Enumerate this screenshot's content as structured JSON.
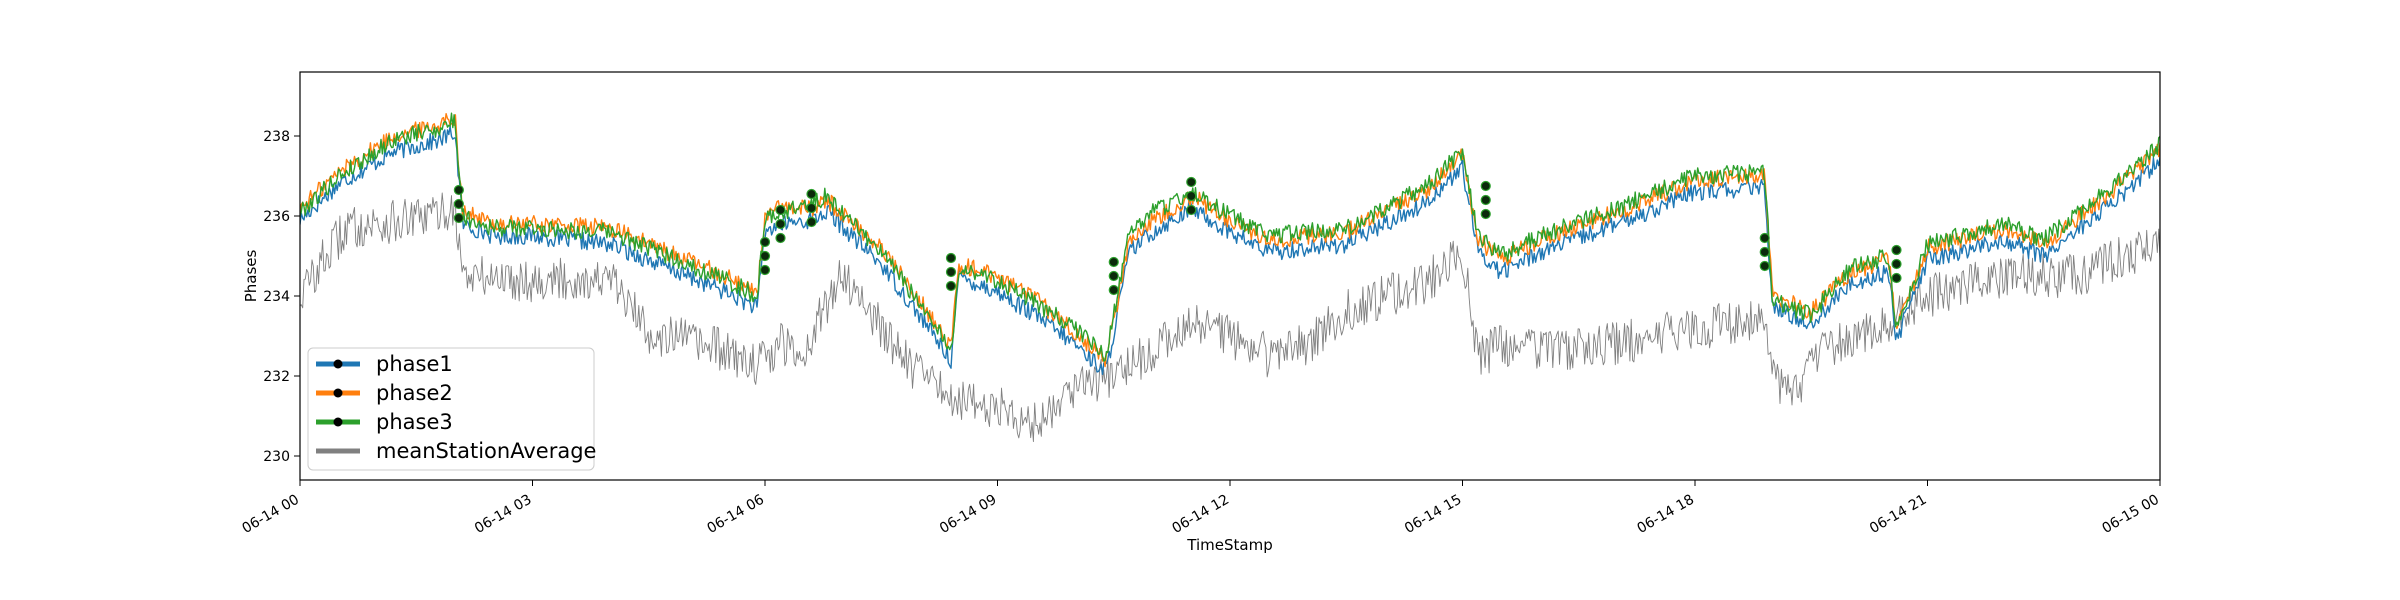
{
  "chart_data": {
    "type": "line",
    "title": "",
    "xlabel": "TimeStamp",
    "ylabel": "Phases",
    "xlim": [
      "06-14 00",
      "06-15 00"
    ],
    "ylim": [
      229.4,
      239.6
    ],
    "x_ticks": [
      "06-14 00",
      "06-14 03",
      "06-14 06",
      "06-14 09",
      "06-14 12",
      "06-14 15",
      "06-14 18",
      "06-14 21",
      "06-15 00"
    ],
    "y_ticks": [
      "230",
      "232",
      "234",
      "236",
      "238"
    ],
    "grid": false,
    "legend_position": "lower-left",
    "series": [
      {
        "name": "phase1",
        "color": "#1f77b4",
        "x_hours": [
          0,
          0.5,
          1.2,
          1.8,
          2.0,
          2.1,
          2.5,
          3,
          4,
          5,
          5.5,
          5.9,
          6.0,
          6.2,
          6.6,
          6.8,
          7.5,
          8.0,
          8.4,
          8.5,
          9.0,
          9.5,
          10.0,
          10.4,
          10.7,
          11.0,
          11.5,
          12.0,
          12.5,
          13.5,
          14.5,
          15.0,
          15.2,
          15.5,
          16.0,
          17.0,
          18.0,
          18.9,
          19.0,
          19.5,
          20.0,
          20.5,
          20.6,
          21,
          22,
          22.5,
          23.5,
          24
        ],
        "values": [
          235.9,
          236.8,
          237.6,
          237.9,
          238.1,
          235.8,
          235.5,
          235.5,
          235.3,
          234.5,
          234.1,
          233.7,
          235.6,
          235.8,
          235.9,
          236.1,
          234.8,
          233.5,
          232.4,
          234.5,
          234.1,
          233.5,
          232.8,
          232.1,
          235.1,
          235.6,
          236.2,
          235.6,
          235.1,
          235.3,
          236.3,
          237.2,
          235.1,
          234.6,
          235.1,
          235.8,
          236.6,
          236.7,
          233.7,
          233.3,
          234.3,
          234.6,
          232.9,
          234.9,
          235.4,
          235.0,
          236.5,
          237.4
        ]
      },
      {
        "name": "phase2",
        "color": "#ff7f0e",
        "x_hours": [
          0,
          0.5,
          1.2,
          1.8,
          2.0,
          2.1,
          2.5,
          3,
          4,
          5,
          5.5,
          5.9,
          6.0,
          6.2,
          6.6,
          6.8,
          7.5,
          8.0,
          8.4,
          8.5,
          9.0,
          9.5,
          10.0,
          10.4,
          10.7,
          11.0,
          11.5,
          12.0,
          12.5,
          13.5,
          14.5,
          15.0,
          15.2,
          15.5,
          16.0,
          17.0,
          18.0,
          18.9,
          19.0,
          19.5,
          20.0,
          20.5,
          20.6,
          21,
          22,
          22.5,
          23.5,
          24
        ],
        "values": [
          236.2,
          237.1,
          238.0,
          238.3,
          238.5,
          236.1,
          235.8,
          235.8,
          235.7,
          234.9,
          234.5,
          234.1,
          236.0,
          236.2,
          236.2,
          236.4,
          235.2,
          233.9,
          232.7,
          234.8,
          234.5,
          233.9,
          233.1,
          232.4,
          235.4,
          235.9,
          236.5,
          235.9,
          235.4,
          235.6,
          236.6,
          237.5,
          235.4,
          234.9,
          235.4,
          236.1,
          236.9,
          237.0,
          234.0,
          233.6,
          234.6,
          234.9,
          233.2,
          235.2,
          235.7,
          235.3,
          236.8,
          237.7
        ]
      },
      {
        "name": "phase3",
        "color": "#2ca02c",
        "x_hours": [
          0,
          0.5,
          1.2,
          1.8,
          2.0,
          2.1,
          2.5,
          3,
          4,
          5,
          5.5,
          5.9,
          6.0,
          6.2,
          6.6,
          6.8,
          7.5,
          8.0,
          8.4,
          8.5,
          9.0,
          9.5,
          10.0,
          10.4,
          10.7,
          11.0,
          11.5,
          12.0,
          12.5,
          13.5,
          14.5,
          15.0,
          15.2,
          15.5,
          16.0,
          17.0,
          18.0,
          18.9,
          19.0,
          19.5,
          20.0,
          20.5,
          20.6,
          21,
          22,
          22.5,
          23.5,
          24
        ],
        "values": [
          236.1,
          237.0,
          237.9,
          238.2,
          238.4,
          236.0,
          235.7,
          235.7,
          235.6,
          234.8,
          234.4,
          234.0,
          235.9,
          236.1,
          236.3,
          236.5,
          235.1,
          233.8,
          232.6,
          234.7,
          234.4,
          233.8,
          233.2,
          232.5,
          235.6,
          236.1,
          236.6,
          236.0,
          235.5,
          235.7,
          236.7,
          237.6,
          235.5,
          235.0,
          235.5,
          236.2,
          237.0,
          237.1,
          233.9,
          233.5,
          234.7,
          235.0,
          233.1,
          235.3,
          235.8,
          235.4,
          236.9,
          237.8
        ]
      },
      {
        "name": "meanStationAverage",
        "color": "#808080",
        "x_hours": [
          0,
          0.3,
          0.6,
          1.0,
          1.5,
          2.0,
          2.1,
          3,
          4,
          4.5,
          5,
          5.5,
          5.8,
          6.0,
          6.2,
          6.5,
          7.0,
          7.5,
          8.0,
          8.5,
          9.0,
          9.5,
          10.0,
          10.5,
          11.0,
          11.5,
          12.0,
          12.5,
          13.0,
          13.5,
          14.0,
          14.5,
          15.0,
          15.2,
          15.5,
          16.0,
          17.0,
          18.0,
          18.9,
          19.0,
          19.3,
          19.6,
          20.0,
          20.5,
          21,
          22,
          23,
          24
        ],
        "values": [
          234.0,
          234.9,
          235.7,
          235.8,
          235.9,
          236.2,
          234.5,
          234.4,
          234.4,
          233.1,
          232.9,
          232.6,
          232.3,
          232.4,
          232.8,
          232.6,
          234.6,
          233.2,
          232.0,
          231.4,
          231.2,
          230.8,
          231.8,
          232.0,
          232.6,
          233.4,
          233.0,
          232.5,
          232.8,
          233.6,
          234.0,
          234.3,
          235.1,
          232.4,
          232.8,
          232.6,
          232.8,
          233.2,
          233.4,
          232.0,
          231.5,
          232.5,
          233.0,
          233.3,
          234.0,
          234.5,
          234.5,
          235.4
        ]
      }
    ],
    "markers": {
      "description_color": "black",
      "x_hours": [
        2.05,
        6.0,
        6.2,
        6.6,
        8.4,
        10.5,
        11.5,
        15.3,
        18.9,
        20.6
      ],
      "values": [
        236.3,
        235.0,
        235.8,
        236.2,
        234.6,
        234.5,
        236.5,
        236.4,
        235.1,
        234.8
      ]
    }
  }
}
